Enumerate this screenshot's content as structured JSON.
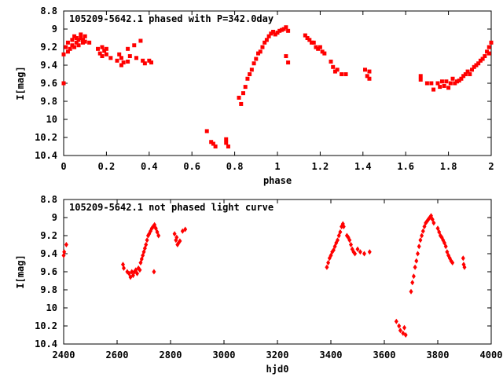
{
  "chart_data": [
    {
      "type": "scatter",
      "title": "105209-5642.1 phased with P=342.0day",
      "xlabel": "phase",
      "ylabel": "I[mag]",
      "xlim": [
        0,
        2
      ],
      "ylim": [
        8.8,
        10.4
      ],
      "y_inverted": true,
      "grid": false,
      "marker": "filled-square",
      "color": "#ff0000",
      "x_ticks": [
        0,
        0.2,
        0.4,
        0.6,
        0.8,
        1,
        1.2,
        1.4,
        1.6,
        1.8,
        2
      ],
      "x_tick_labels": [
        "0",
        "0.2",
        "0.4",
        "0.6",
        "0.8",
        "1",
        "1.2",
        "1.4",
        "1.6",
        "1.8",
        "2"
      ],
      "y_ticks": [
        8.8,
        9,
        9.2,
        9.4,
        9.6,
        9.8,
        10,
        10.2,
        10.4
      ],
      "y_tick_labels": [
        "8.8",
        "9",
        "9.2",
        "9.4",
        "9.6",
        "9.8",
        "10",
        "10.2",
        "10.4"
      ],
      "series": [
        {
          "points": [
            [
              0.0,
              9.28
            ],
            [
              0.0,
              9.6
            ],
            [
              0.01,
              9.2
            ],
            [
              0.02,
              9.25
            ],
            [
              0.02,
              9.15
            ],
            [
              0.03,
              9.22
            ],
            [
              0.04,
              9.18
            ],
            [
              0.04,
              9.12
            ],
            [
              0.05,
              9.2
            ],
            [
              0.05,
              9.08
            ],
            [
              0.06,
              9.15
            ],
            [
              0.06,
              9.1
            ],
            [
              0.07,
              9.12
            ],
            [
              0.07,
              9.18
            ],
            [
              0.08,
              9.06
            ],
            [
              0.08,
              9.1
            ],
            [
              0.09,
              9.15
            ],
            [
              0.09,
              9.12
            ],
            [
              0.1,
              9.08
            ],
            [
              0.1,
              9.14
            ],
            [
              0.12,
              9.15
            ],
            [
              0.16,
              9.22
            ],
            [
              0.17,
              9.27
            ],
            [
              0.18,
              9.2
            ],
            [
              0.18,
              9.3
            ],
            [
              0.19,
              9.24
            ],
            [
              0.2,
              9.28
            ],
            [
              0.2,
              9.22
            ],
            [
              0.22,
              9.32
            ],
            [
              0.25,
              9.35
            ],
            [
              0.26,
              9.28
            ],
            [
              0.27,
              9.4
            ],
            [
              0.27,
              9.32
            ],
            [
              0.28,
              9.37
            ],
            [
              0.3,
              9.22
            ],
            [
              0.3,
              9.36
            ],
            [
              0.31,
              9.3
            ],
            [
              0.33,
              9.18
            ],
            [
              0.34,
              9.32
            ],
            [
              0.36,
              9.13
            ],
            [
              0.37,
              9.35
            ],
            [
              0.38,
              9.38
            ],
            [
              0.4,
              9.35
            ],
            [
              0.41,
              9.37
            ],
            [
              0.67,
              10.13
            ],
            [
              0.69,
              10.25
            ],
            [
              0.7,
              10.27
            ],
            [
              0.71,
              10.3
            ],
            [
              0.76,
              10.22
            ],
            [
              0.76,
              10.26
            ],
            [
              0.77,
              10.3
            ],
            [
              0.82,
              9.76
            ],
            [
              0.83,
              9.83
            ],
            [
              0.84,
              9.71
            ],
            [
              0.85,
              9.64
            ],
            [
              0.86,
              9.55
            ],
            [
              0.87,
              9.5
            ],
            [
              0.88,
              9.45
            ],
            [
              0.89,
              9.38
            ],
            [
              0.9,
              9.33
            ],
            [
              0.91,
              9.27
            ],
            [
              0.92,
              9.25
            ],
            [
              0.93,
              9.2
            ],
            [
              0.94,
              9.15
            ],
            [
              0.95,
              9.12
            ],
            [
              0.96,
              9.08
            ],
            [
              0.97,
              9.05
            ],
            [
              0.98,
              9.03
            ],
            [
              0.99,
              9.06
            ],
            [
              1.0,
              9.04
            ],
            [
              1.01,
              9.02
            ],
            [
              1.02,
              9.01
            ],
            [
              1.03,
              9.0
            ],
            [
              1.04,
              8.98
            ],
            [
              1.05,
              9.02
            ],
            [
              1.04,
              9.3
            ],
            [
              1.05,
              9.37
            ],
            [
              1.13,
              9.07
            ],
            [
              1.14,
              9.1
            ],
            [
              1.15,
              9.12
            ],
            [
              1.16,
              9.15
            ],
            [
              1.17,
              9.15
            ],
            [
              1.18,
              9.2
            ],
            [
              1.19,
              9.22
            ],
            [
              1.2,
              9.2
            ],
            [
              1.21,
              9.25
            ],
            [
              1.22,
              9.27
            ],
            [
              1.25,
              9.36
            ],
            [
              1.26,
              9.42
            ],
            [
              1.27,
              9.47
            ],
            [
              1.28,
              9.45
            ],
            [
              1.3,
              9.5
            ],
            [
              1.32,
              9.5
            ],
            [
              1.41,
              9.45
            ],
            [
              1.42,
              9.52
            ],
            [
              1.43,
              9.55
            ],
            [
              1.43,
              9.47
            ],
            [
              1.67,
              9.52
            ],
            [
              1.67,
              9.56
            ],
            [
              1.7,
              9.6
            ],
            [
              1.72,
              9.6
            ],
            [
              1.73,
              9.67
            ],
            [
              1.75,
              9.6
            ],
            [
              1.76,
              9.64
            ],
            [
              1.77,
              9.58
            ],
            [
              1.78,
              9.63
            ],
            [
              1.79,
              9.58
            ],
            [
              1.8,
              9.65
            ],
            [
              1.81,
              9.6
            ],
            [
              1.82,
              9.55
            ],
            [
              1.83,
              9.6
            ],
            [
              1.84,
              9.58
            ],
            [
              1.85,
              9.57
            ],
            [
              1.86,
              9.55
            ],
            [
              1.87,
              9.52
            ],
            [
              1.88,
              9.5
            ],
            [
              1.89,
              9.47
            ],
            [
              1.9,
              9.5
            ],
            [
              1.91,
              9.45
            ],
            [
              1.92,
              9.42
            ],
            [
              1.93,
              9.4
            ],
            [
              1.94,
              9.38
            ],
            [
              1.95,
              9.35
            ],
            [
              1.96,
              9.33
            ],
            [
              1.97,
              9.3
            ],
            [
              1.98,
              9.25
            ],
            [
              1.99,
              9.2
            ],
            [
              2.0,
              9.15
            ],
            [
              1.99,
              9.27
            ]
          ]
        }
      ]
    },
    {
      "type": "scatter",
      "title": "105209-5642.1 not phased light curve",
      "xlabel": "hjd0",
      "ylabel": "I[mag]",
      "xlim": [
        2400,
        4000
      ],
      "ylim": [
        8.8,
        10.4
      ],
      "y_inverted": true,
      "grid": false,
      "marker": "filled-diamond",
      "color": "#ff0000",
      "x_ticks": [
        2400,
        2600,
        2800,
        3000,
        3200,
        3400,
        3600,
        3800,
        4000
      ],
      "x_tick_labels": [
        "2400",
        "2600",
        "2800",
        "3000",
        "3200",
        "3400",
        "3600",
        "3800",
        "4000"
      ],
      "y_ticks": [
        8.8,
        9,
        9.2,
        9.4,
        9.6,
        9.8,
        10,
        10.2,
        10.4
      ],
      "y_tick_labels": [
        "8.8",
        "9",
        "9.2",
        "9.4",
        "9.6",
        "9.8",
        "10",
        "10.2",
        "10.4"
      ],
      "series": [
        {
          "points": [
            [
              2400,
              9.42
            ],
            [
              2402,
              9.38
            ],
            [
              2410,
              9.3
            ],
            [
              2622,
              9.52
            ],
            [
              2625,
              9.56
            ],
            [
              2638,
              9.6
            ],
            [
              2645,
              9.62
            ],
            [
              2650,
              9.66
            ],
            [
              2655,
              9.6
            ],
            [
              2660,
              9.64
            ],
            [
              2665,
              9.6
            ],
            [
              2670,
              9.58
            ],
            [
              2675,
              9.62
            ],
            [
              2680,
              9.56
            ],
            [
              2685,
              9.58
            ],
            [
              2688,
              9.5
            ],
            [
              2692,
              9.46
            ],
            [
              2696,
              9.42
            ],
            [
              2700,
              9.38
            ],
            [
              2704,
              9.34
            ],
            [
              2708,
              9.3
            ],
            [
              2712,
              9.25
            ],
            [
              2716,
              9.2
            ],
            [
              2720,
              9.18
            ],
            [
              2725,
              9.15
            ],
            [
              2730,
              9.12
            ],
            [
              2735,
              9.1
            ],
            [
              2740,
              9.08
            ],
            [
              2745,
              9.12
            ],
            [
              2750,
              9.16
            ],
            [
              2755,
              9.2
            ],
            [
              2738,
              9.6
            ],
            [
              2815,
              9.18
            ],
            [
              2820,
              9.25
            ],
            [
              2823,
              9.22
            ],
            [
              2826,
              9.3
            ],
            [
              2830,
              9.28
            ],
            [
              2835,
              9.26
            ],
            [
              2845,
              9.15
            ],
            [
              2855,
              9.13
            ],
            [
              3385,
              9.55
            ],
            [
              3390,
              9.5
            ],
            [
              3395,
              9.45
            ],
            [
              3400,
              9.42
            ],
            [
              3405,
              9.38
            ],
            [
              3410,
              9.36
            ],
            [
              3415,
              9.32
            ],
            [
              3420,
              9.28
            ],
            [
              3425,
              9.25
            ],
            [
              3430,
              9.2
            ],
            [
              3435,
              9.16
            ],
            [
              3440,
              9.1
            ],
            [
              3445,
              9.07
            ],
            [
              3448,
              9.1
            ],
            [
              3460,
              9.2
            ],
            [
              3465,
              9.22
            ],
            [
              3470,
              9.25
            ],
            [
              3475,
              9.3
            ],
            [
              3480,
              9.35
            ],
            [
              3485,
              9.38
            ],
            [
              3490,
              9.4
            ],
            [
              3500,
              9.35
            ],
            [
              3510,
              9.38
            ],
            [
              3525,
              9.4
            ],
            [
              3545,
              9.38
            ],
            [
              3645,
              10.15
            ],
            [
              3655,
              10.2
            ],
            [
              3660,
              10.25
            ],
            [
              3670,
              10.28
            ],
            [
              3675,
              10.22
            ],
            [
              3680,
              10.3
            ],
            [
              3700,
              9.82
            ],
            [
              3705,
              9.72
            ],
            [
              3710,
              9.65
            ],
            [
              3715,
              9.55
            ],
            [
              3720,
              9.48
            ],
            [
              3725,
              9.4
            ],
            [
              3730,
              9.32
            ],
            [
              3735,
              9.25
            ],
            [
              3740,
              9.2
            ],
            [
              3745,
              9.15
            ],
            [
              3750,
              9.1
            ],
            [
              3755,
              9.06
            ],
            [
              3760,
              9.04
            ],
            [
              3765,
              9.02
            ],
            [
              3770,
              9.0
            ],
            [
              3775,
              8.98
            ],
            [
              3780,
              9.02
            ],
            [
              3785,
              9.06
            ],
            [
              3800,
              9.12
            ],
            [
              3805,
              9.16
            ],
            [
              3810,
              9.2
            ],
            [
              3815,
              9.22
            ],
            [
              3820,
              9.25
            ],
            [
              3825,
              9.28
            ],
            [
              3830,
              9.32
            ],
            [
              3835,
              9.38
            ],
            [
              3840,
              9.42
            ],
            [
              3845,
              9.45
            ],
            [
              3850,
              9.48
            ],
            [
              3855,
              9.5
            ],
            [
              3895,
              9.45
            ],
            [
              3897,
              9.52
            ],
            [
              3900,
              9.55
            ]
          ]
        }
      ]
    }
  ]
}
